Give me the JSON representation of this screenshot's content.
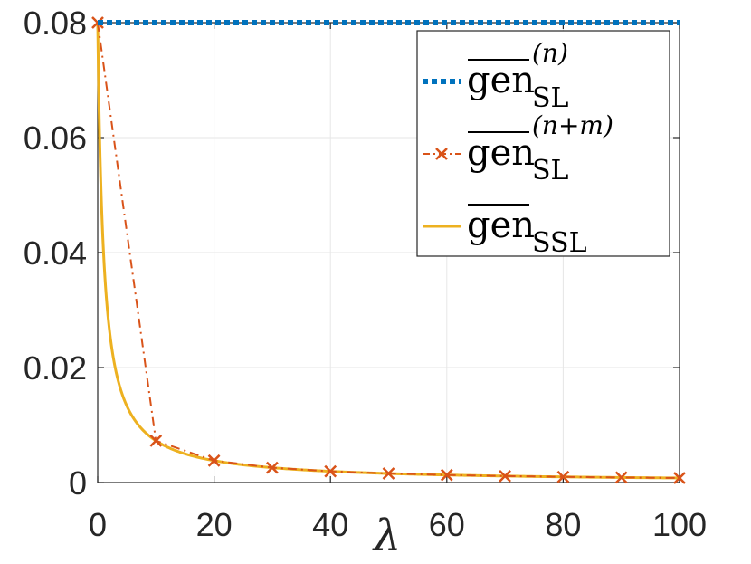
{
  "chart_data": {
    "type": "line",
    "xlabel": "λ",
    "ylabel": "",
    "xlim": [
      0,
      100
    ],
    "ylim": [
      0,
      0.08
    ],
    "xticks": [
      0,
      20,
      40,
      60,
      80,
      100
    ],
    "yticks": [
      0,
      0.02,
      0.04,
      0.06,
      0.08
    ],
    "xtick_labels": [
      "0",
      "20",
      "40",
      "60",
      "80",
      "100"
    ],
    "ytick_labels": [
      "0",
      "0.02",
      "0.04",
      "0.06",
      "0.08"
    ],
    "grid": true,
    "legend_position": "top-right",
    "series": [
      {
        "name": "gen_SL^(n)",
        "legend": {
          "base": "gen",
          "sub": "SL",
          "sup": "(n)"
        },
        "style": "dotted",
        "color": "#0072BD",
        "x": [
          0,
          100
        ],
        "y": [
          0.08,
          0.08
        ]
      },
      {
        "name": "gen_SL^(n+m)",
        "legend": {
          "base": "gen",
          "sub": "SL",
          "sup": "(n+m)"
        },
        "style": "dashdot-x",
        "color": "#D95319",
        "x": [
          0,
          10,
          20,
          30,
          40,
          50,
          60,
          70,
          80,
          90,
          100
        ],
        "y": [
          0.08,
          0.00727,
          0.00381,
          0.00258,
          0.00195,
          0.00157,
          0.00131,
          0.00113,
          0.00099,
          0.00088,
          0.00079
        ]
      },
      {
        "name": "gen_SSL",
        "legend": {
          "base": "gen",
          "sub": "SSL",
          "sup": ""
        },
        "style": "solid",
        "color": "#EDB120",
        "curve": {
          "a": 0.08,
          "b": 1
        },
        "x_range": [
          0,
          100
        ]
      }
    ]
  }
}
